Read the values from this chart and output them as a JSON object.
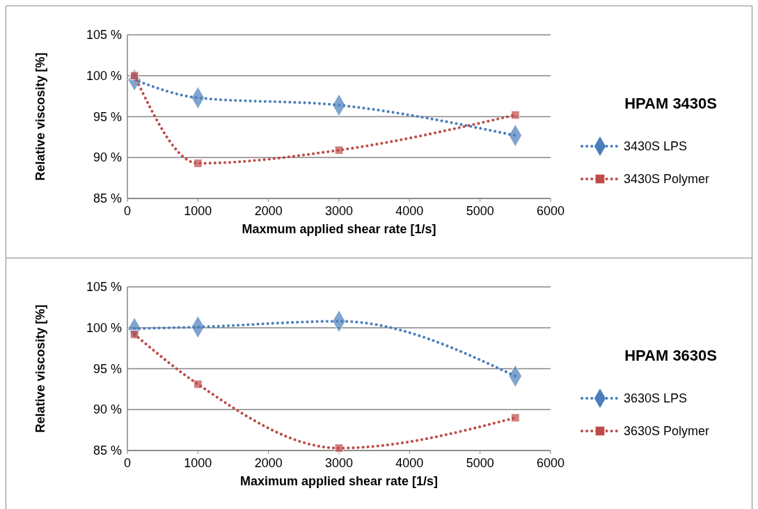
{
  "chart_data": [
    {
      "type": "line",
      "legend_title": "HPAM 3430S",
      "xlabel": "Maxmum applied shear rate [1/s]",
      "ylabel": "Relative viscosity [%]",
      "x": [
        100,
        1000,
        3000,
        5500
      ],
      "xlim": [
        0,
        6000
      ],
      "xticks": [
        0,
        1000,
        2000,
        3000,
        4000,
        5000,
        6000
      ],
      "ylim": [
        85,
        105
      ],
      "yticks": [
        {
          "value": 85,
          "label": "85 %"
        },
        {
          "value": 90,
          "label": "90 %"
        },
        {
          "value": 95,
          "label": "95 %"
        },
        {
          "value": 100,
          "label": "100 %"
        },
        {
          "value": 105,
          "label": "105 %"
        }
      ],
      "grid": "y",
      "legend": "right",
      "line_style": "dotted",
      "series": [
        {
          "name": "3430S LPS",
          "color": "#4a7ebb",
          "marker": "diamond",
          "values": [
            99.5,
            97.3,
            96.4,
            92.7
          ]
        },
        {
          "name": "3430S Polymer",
          "color": "#be4b48",
          "marker": "square",
          "values": [
            100.0,
            89.3,
            90.9,
            95.2
          ]
        }
      ]
    },
    {
      "type": "line",
      "legend_title": "HPAM 3630S",
      "xlabel": "Maximum applied shear rate [1/s]",
      "ylabel": "Relative viscosity [%]",
      "x": [
        100,
        1000,
        3000,
        5500
      ],
      "xlim": [
        0,
        6000
      ],
      "xticks": [
        0,
        1000,
        2000,
        3000,
        4000,
        5000,
        6000
      ],
      "ylim": [
        85,
        105
      ],
      "yticks": [
        {
          "value": 85,
          "label": "85 %"
        },
        {
          "value": 90,
          "label": "90 %"
        },
        {
          "value": 95,
          "label": "95 %"
        },
        {
          "value": 100,
          "label": "100 %"
        },
        {
          "value": 105,
          "label": "105 %"
        }
      ],
      "grid": "y",
      "legend": "right",
      "line_style": "dotted",
      "series": [
        {
          "name": "3630S LPS",
          "color": "#4a7ebb",
          "marker": "diamond",
          "values": [
            99.9,
            100.1,
            100.8,
            94.1
          ]
        },
        {
          "name": "3630S Polymer",
          "color": "#be4b48",
          "marker": "square",
          "values": [
            99.2,
            93.1,
            85.3,
            89.0
          ]
        }
      ]
    }
  ]
}
